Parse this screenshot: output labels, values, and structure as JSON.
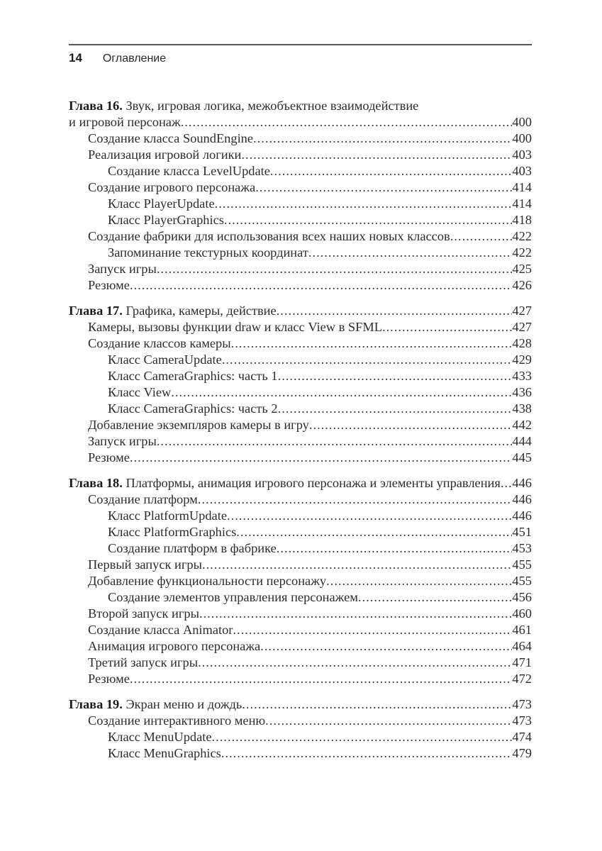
{
  "header": {
    "page_number": "14",
    "section_title": "Оглавление"
  },
  "toc": {
    "chapters": [
      {
        "rows": [
          {
            "indent": 0,
            "bold": "Глава 16.",
            "text": " Звук, игровая логика, межобъектное взаимодействие"
          },
          {
            "indent": 0,
            "text": "и игровой персонаж",
            "page": "400"
          },
          {
            "indent": 1,
            "text": "Создание класса SoundEngine",
            "page": "400"
          },
          {
            "indent": 1,
            "text": "Реализация игровой логики ",
            "page": "403"
          },
          {
            "indent": 2,
            "text": "Создание класса LevelUpdate ",
            "page": "403"
          },
          {
            "indent": 1,
            "text": "Создание игрового персонажа ",
            "page": "414"
          },
          {
            "indent": 2,
            "text": "Класс PlayerUpdate ",
            "page": "414"
          },
          {
            "indent": 2,
            "text": "Класс PlayerGraphics ",
            "page": "418"
          },
          {
            "indent": 1,
            "text": "Создание фабрики для использования всех наших новых классов ",
            "page": "422"
          },
          {
            "indent": 2,
            "text": "Запоминание текстурных координат ",
            "page": "422"
          },
          {
            "indent": 1,
            "text": "Запуск игры",
            "page": "425"
          },
          {
            "indent": 1,
            "text": "Резюме",
            "page": "426"
          }
        ]
      },
      {
        "rows": [
          {
            "indent": 0,
            "bold": "Глава 17.",
            "text": " Графика, камеры, действие",
            "page": "427"
          },
          {
            "indent": 1,
            "text": "Камеры, вызовы функции draw и класс View в SFML",
            "page": "427"
          },
          {
            "indent": 1,
            "text": "Создание классов камеры",
            "page": "428"
          },
          {
            "indent": 2,
            "text": "Класс CameraUpdate",
            "page": "429"
          },
          {
            "indent": 2,
            "text": "Класс CameraGraphics: часть 1 ",
            "page": "433"
          },
          {
            "indent": 2,
            "text": "Класс View",
            "page": "436"
          },
          {
            "indent": 2,
            "text": "Класс CameraGraphics: часть 2 ",
            "page": "438"
          },
          {
            "indent": 1,
            "text": "Добавление экземпляров камеры в игру",
            "page": "442"
          },
          {
            "indent": 1,
            "text": "Запуск игры",
            "page": "444"
          },
          {
            "indent": 1,
            "text": "Резюме",
            "page": "445"
          }
        ]
      },
      {
        "rows": [
          {
            "indent": 0,
            "bold": "Глава 18.",
            "text": " Платформы, анимация игрового персонажа и элементы управления",
            "page": "446"
          },
          {
            "indent": 1,
            "text": "Создание платформ ",
            "page": "446"
          },
          {
            "indent": 2,
            "text": "Класс PlatformUpdate",
            "page": "446"
          },
          {
            "indent": 2,
            "text": "Класс PlatformGraphics",
            "page": "451"
          },
          {
            "indent": 2,
            "text": "Создание платформ в фабрике",
            "page": "453"
          },
          {
            "indent": 1,
            "text": "Первый запуск игры ",
            "page": "455"
          },
          {
            "indent": 1,
            "text": "Добавление функциональности персонажу",
            "page": "455"
          },
          {
            "indent": 2,
            "text": "Создание элементов управления персонажем",
            "page": "456"
          },
          {
            "indent": 1,
            "text": "Второй запуск игры ",
            "page": "460"
          },
          {
            "indent": 1,
            "text": "Создание класса Animator ",
            "page": "461"
          },
          {
            "indent": 1,
            "text": "Анимация игрового персонажа",
            "page": "464"
          },
          {
            "indent": 1,
            "text": "Третий запуск игры ",
            "page": "471"
          },
          {
            "indent": 1,
            "text": "Резюме",
            "page": "472"
          }
        ]
      },
      {
        "rows": [
          {
            "indent": 0,
            "bold": "Глава 19.",
            "text": " Экран меню и дождь ",
            "page": "473"
          },
          {
            "indent": 1,
            "text": "Создание интерактивного меню",
            "page": "473"
          },
          {
            "indent": 2,
            "text": "Класс MenuUpdate ",
            "page": "474"
          },
          {
            "indent": 2,
            "text": "Класс MenuGraphics ",
            "page": "479"
          }
        ]
      }
    ]
  }
}
